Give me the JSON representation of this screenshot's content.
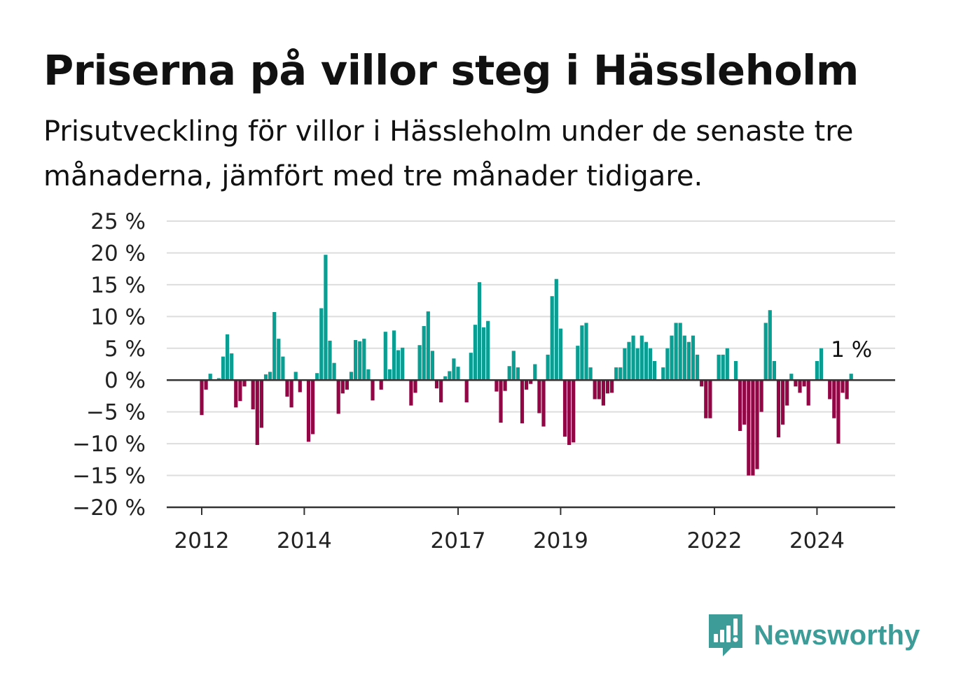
{
  "title": "Priserna på villor steg i Hässleholm",
  "subtitle": "Prisutveckling för villor i Hässleholm under de senaste tre månaderna, jämfört med tre månader tidigare.",
  "brand": {
    "name": "Newsworthy",
    "icon": "newsworthy-logo-icon",
    "color": "#3d9c98"
  },
  "colors": {
    "positive": "#0a9e93",
    "negative": "#930646",
    "gridline": "#dddddd",
    "axis": "#333333"
  },
  "chart_data": {
    "type": "bar",
    "x_start": "2012-01",
    "x_step": "month",
    "xticks": [
      {
        "label": "2012",
        "x": "2012-01"
      },
      {
        "label": "2014",
        "x": "2014-01"
      },
      {
        "label": "2017",
        "x": "2017-01"
      },
      {
        "label": "2019",
        "x": "2019-01"
      },
      {
        "label": "2022",
        "x": "2022-01"
      },
      {
        "label": "2024",
        "x": "2024-01"
      }
    ],
    "yticks": [
      {
        "value": 25,
        "label": "25 %"
      },
      {
        "value": 20,
        "label": "20 %"
      },
      {
        "value": 15,
        "label": "15 %"
      },
      {
        "value": 10,
        "label": "10 %"
      },
      {
        "value": 5,
        "label": "5 %"
      },
      {
        "value": 0,
        "label": "0 %"
      },
      {
        "value": -5,
        "label": "−5 %"
      },
      {
        "value": -10,
        "label": "−10 %"
      },
      {
        "value": -15,
        "label": "−15 %"
      },
      {
        "value": -20,
        "label": "−20 %"
      }
    ],
    "ylim": [
      -20,
      25
    ],
    "grid": true,
    "annotation": {
      "label": "1 %",
      "value": 1
    },
    "values": [
      -5.5,
      -1.5,
      1,
      0,
      0.3,
      3.7,
      7.2,
      4.2,
      -4.3,
      -3.3,
      -1,
      0,
      -4.6,
      -10.2,
      -7.5,
      0.9,
      1.3,
      10.7,
      6.5,
      3.7,
      -2.6,
      -4.3,
      1.3,
      -1.9,
      0,
      -9.7,
      -8.5,
      1.1,
      11.3,
      19.7,
      6.2,
      2.7,
      -5.3,
      -2.1,
      -1.5,
      1.3,
      6.3,
      6.1,
      6.5,
      1.7,
      -3.2,
      0,
      -1.5,
      7.6,
      1.7,
      7.8,
      4.7,
      5.1,
      0,
      -4,
      -2,
      5.5,
      8.5,
      10.8,
      4.6,
      -1.3,
      -3.5,
      0.6,
      1.4,
      3.4,
      2.1,
      0,
      -3.5,
      4.3,
      8.7,
      15.4,
      8.3,
      9.3,
      0,
      -1.8,
      -6.7,
      -1.7,
      2.2,
      4.6,
      2,
      -6.8,
      -1.5,
      -0.6,
      2.5,
      -5.2,
      -7.3,
      4,
      13.2,
      15.9,
      8.1,
      -8.9,
      -10.2,
      -9.8,
      5.4,
      8.6,
      9,
      2,
      -3,
      -3,
      -4,
      -2.1,
      -2,
      2,
      2,
      5,
      6,
      7,
      5,
      7,
      6,
      5,
      3,
      0,
      2,
      5,
      7,
      9,
      9,
      7,
      6,
      7,
      4,
      -1,
      -6,
      -6,
      0,
      4,
      4,
      5,
      0,
      3,
      -8,
      -7,
      -15,
      -15,
      -14,
      -5,
      9,
      11,
      3,
      -9,
      -7,
      -4,
      1,
      -1,
      -2,
      -1,
      -4,
      0,
      3,
      5,
      0,
      -3,
      -6,
      -10,
      -2,
      -3,
      1
    ]
  }
}
